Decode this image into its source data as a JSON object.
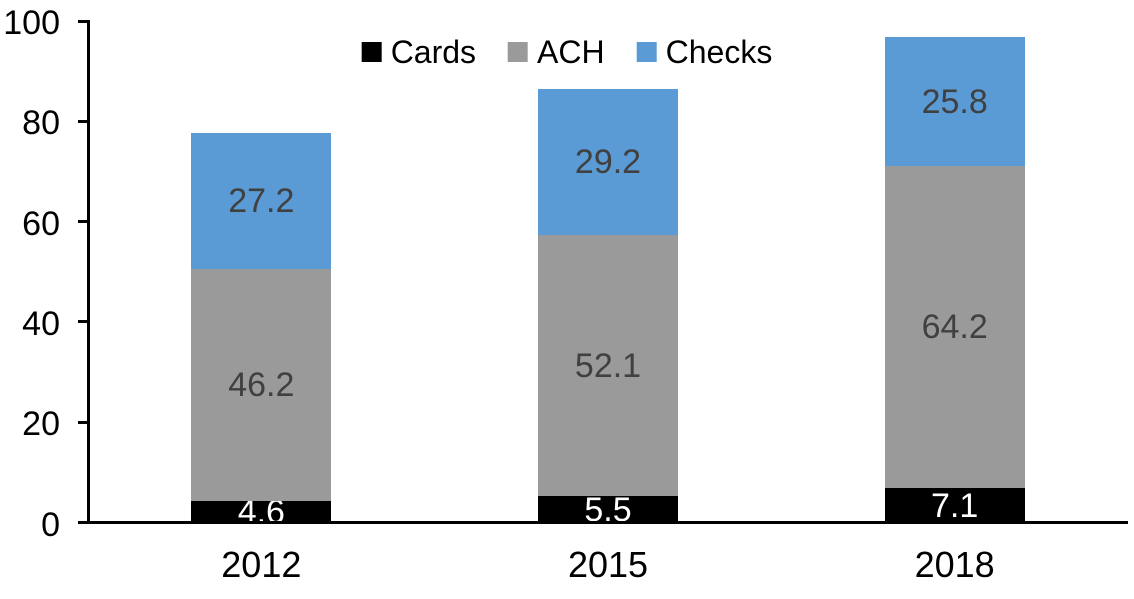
{
  "chart_data": {
    "type": "bar",
    "stacked": true,
    "categories": [
      "2012",
      "2015",
      "2018"
    ],
    "series": [
      {
        "name": "Cards",
        "color": "#000000",
        "label_color": "#ffffff",
        "values": [
          4.6,
          5.5,
          7.1
        ]
      },
      {
        "name": "ACH",
        "color": "#9a9a9a",
        "label_color": "#404040",
        "values": [
          46.2,
          52.1,
          64.2
        ]
      },
      {
        "name": "Checks",
        "color": "#5b9bd5",
        "label_color": "#404040",
        "values": [
          27.2,
          29.2,
          25.8
        ]
      }
    ],
    "y_ticks": [
      0,
      20,
      40,
      60,
      80,
      100
    ],
    "ylim": [
      0,
      100
    ],
    "xlabel": "",
    "ylabel": "",
    "title": "",
    "grid": false,
    "legend_position": "top",
    "axis_color": "#000000",
    "background": "#ffffff"
  }
}
